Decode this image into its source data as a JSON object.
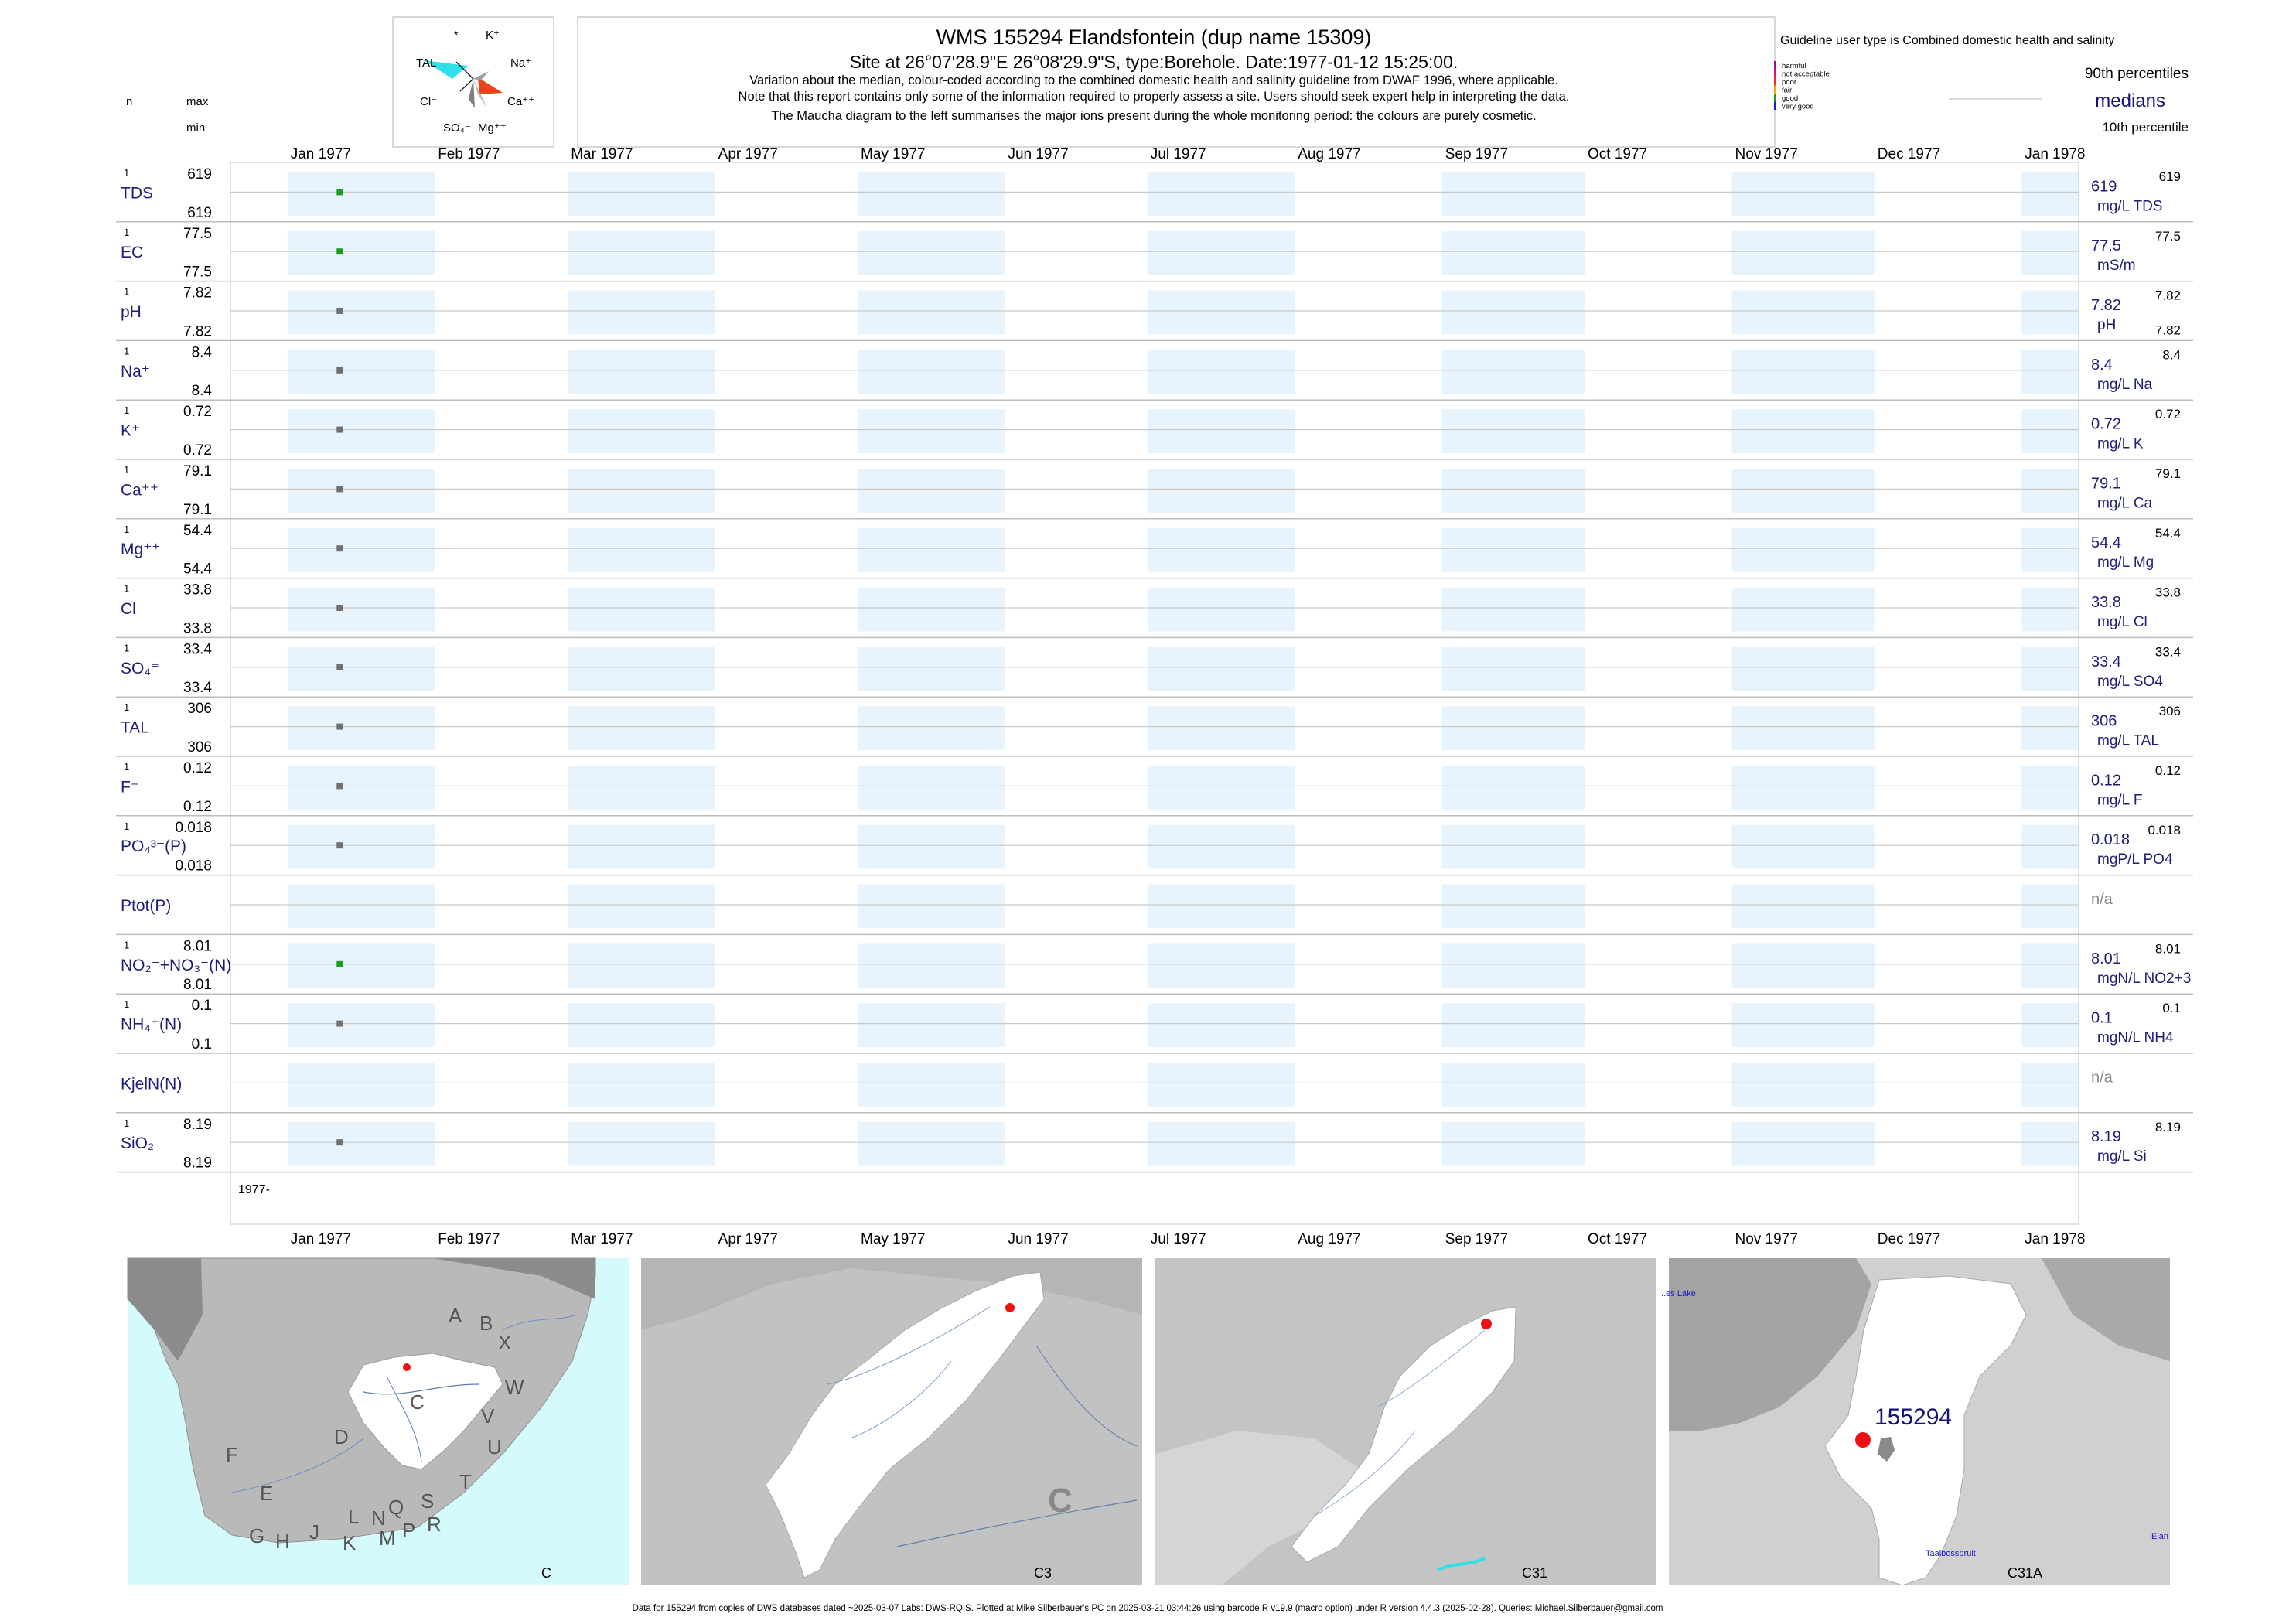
{
  "header": {
    "title": "WMS 155294  Elandsfontein (dup name 15309)",
    "site_line": "Site at 26°07'28.9\"E 26°08'29.9\"S, type:Borehole. Date:1977-01-12 15:25:00.",
    "note1": "Variation about the median,  colour-coded according to the combined domestic health and salinity guideline from DWAF 1996, where applicable.",
    "note2": "Note that this report contains only some of the information required to properly assess a site. Users should seek expert help in interpreting the data.",
    "note3": "The Maucha diagram to the left summarises the major ions present during the whole monitoring period: the colours are purely cosmetic."
  },
  "maucha": {
    "labels": {
      "star": "*",
      "k": "K⁺",
      "tal": "TAL",
      "na": "Na⁺",
      "cl": "Cl⁻",
      "ca": "Ca⁺⁺",
      "so4": "SO₄⁼",
      "mg": "Mg⁺⁺"
    },
    "colors": {
      "tal": "#2fe0e8",
      "ca": "#e8441c",
      "so4": "#7f7f7f",
      "mg": "#b8b8b8"
    }
  },
  "left_header": {
    "n": "n",
    "max": "max",
    "min": "min"
  },
  "legend": {
    "guideline": "Guideline user type is Combined domestic health and salinity",
    "classes": [
      {
        "label": "harmful",
        "color": "#a0108a"
      },
      {
        "label": "not acceptable",
        "color": "#e0108a"
      },
      {
        "label": "poor",
        "color": "#ff2a1a"
      },
      {
        "label": "fair",
        "color": "#ffa500"
      },
      {
        "label": "good",
        "color": "#1aa01a"
      },
      {
        "label": "very good",
        "color": "#1a1ad0"
      }
    ],
    "p90": "90th percentiles",
    "medians": "medians",
    "p10": "10th percentile"
  },
  "chart_data": {
    "type": "scatter",
    "months": [
      "Jan 1977",
      "Feb 1977",
      "Mar 1977",
      "Apr 1977",
      "May 1977",
      "Jun 1977",
      "Jul 1977",
      "Aug 1977",
      "Sep 1977",
      "Oct 1977",
      "Nov 1977",
      "Dec 1977",
      "Jan 1978"
    ],
    "year_label": "1977-",
    "x_range": [
      "1976-12-20",
      "1978-01-13"
    ],
    "sample_date": "1977-01-12",
    "colors": {
      "band": "#e8f4fd",
      "good": "#1aa01a",
      "neutral": "#707070"
    },
    "series": [
      {
        "n": "1",
        "label": "TDS",
        "max": "619",
        "min": "619",
        "median": "619",
        "unit": "mg/L TDS",
        "p90": "619",
        "p10": "",
        "color": "good",
        "value": 619
      },
      {
        "n": "1",
        "label": "EC",
        "max": "77.5",
        "min": "77.5",
        "median": "77.5",
        "unit": "mS/m",
        "p90": "77.5",
        "p10": "",
        "color": "good",
        "value": 77.5
      },
      {
        "n": "1",
        "label": "pH",
        "max": "7.82",
        "min": "7.82",
        "median": "7.82",
        "unit": "pH",
        "p90": "7.82",
        "p10": "7.82",
        "color": "neutral",
        "value": 7.82
      },
      {
        "n": "1",
        "label": "Na⁺",
        "max": "8.4",
        "min": "8.4",
        "median": "8.4",
        "unit": "mg/L Na",
        "p90": "8.4",
        "p10": "",
        "color": "neutral",
        "value": 8.4
      },
      {
        "n": "1",
        "label": "K⁺",
        "max": "0.72",
        "min": "0.72",
        "median": "0.72",
        "unit": "mg/L K",
        "p90": "0.72",
        "p10": "",
        "color": "neutral",
        "value": 0.72
      },
      {
        "n": "1",
        "label": "Ca⁺⁺",
        "max": "79.1",
        "min": "79.1",
        "median": "79.1",
        "unit": "mg/L Ca",
        "p90": "79.1",
        "p10": "",
        "color": "neutral",
        "value": 79.1
      },
      {
        "n": "1",
        "label": "Mg⁺⁺",
        "max": "54.4",
        "min": "54.4",
        "median": "54.4",
        "unit": "mg/L Mg",
        "p90": "54.4",
        "p10": "",
        "color": "neutral",
        "value": 54.4
      },
      {
        "n": "1",
        "label": "Cl⁻",
        "max": "33.8",
        "min": "33.8",
        "median": "33.8",
        "unit": "mg/L Cl",
        "p90": "33.8",
        "p10": "",
        "color": "neutral",
        "value": 33.8
      },
      {
        "n": "1",
        "label": "SO₄⁼",
        "max": "33.4",
        "min": "33.4",
        "median": "33.4",
        "unit": "mg/L SO4",
        "p90": "33.4",
        "p10": "",
        "color": "neutral",
        "value": 33.4
      },
      {
        "n": "1",
        "label": "TAL",
        "max": "306",
        "min": "306",
        "median": "306",
        "unit": "mg/L TAL",
        "p90": "306",
        "p10": "",
        "color": "neutral",
        "value": 306
      },
      {
        "n": "1",
        "label": "F⁻",
        "max": "0.12",
        "min": "0.12",
        "median": "0.12",
        "unit": "mg/L F",
        "p90": "0.12",
        "p10": "",
        "color": "neutral",
        "value": 0.12
      },
      {
        "n": "1",
        "label": "PO₄³⁻(P)",
        "max": "0.018",
        "min": "0.018",
        "median": "0.018",
        "unit": "mgP/L PO4",
        "p90": "0.018",
        "p10": "",
        "color": "neutral",
        "value": 0.018
      },
      {
        "n": "",
        "label": "Ptot(P)",
        "max": "",
        "min": "",
        "median": "n/a",
        "unit": "",
        "p90": "",
        "p10": "",
        "color": "neutral",
        "value": null
      },
      {
        "n": "1",
        "label": "NO₂⁻+NO₃⁻(N)",
        "max": "8.01",
        "min": "8.01",
        "median": "8.01",
        "unit": "mgN/L NO2+3",
        "p90": "8.01",
        "p10": "",
        "color": "good",
        "value": 8.01
      },
      {
        "n": "1",
        "label": "NH₄⁺(N)",
        "max": "0.1",
        "min": "0.1",
        "median": "0.1",
        "unit": "mgN/L NH4",
        "p90": "0.1",
        "p10": "",
        "color": "neutral",
        "value": 0.1
      },
      {
        "n": "",
        "label": "KjelN(N)",
        "max": "",
        "min": "",
        "median": "n/a",
        "unit": "",
        "p90": "",
        "p10": "",
        "color": "neutral",
        "value": null
      },
      {
        "n": "1",
        "label": "SiO₂",
        "max": "8.19",
        "min": "8.19",
        "median": "8.19",
        "unit": "mg/L Si",
        "p90": "8.19",
        "p10": "",
        "color": "neutral",
        "value": 8.19
      }
    ]
  },
  "maps": [
    {
      "label": "C",
      "letters": [
        "A",
        "B",
        "X",
        "W",
        "C",
        "D",
        "V",
        "U",
        "T",
        "F",
        "E",
        "G",
        "H",
        "J",
        "K",
        "L",
        "N",
        "M",
        "Q",
        "P",
        "S",
        "R"
      ]
    },
    {
      "label": "C3",
      "letters": [
        "C"
      ]
    },
    {
      "label": "C31",
      "letters": []
    },
    {
      "label": "C31A",
      "site": "155294",
      "places": [
        "...es Lake",
        "Taaibosspruit",
        "Elan"
      ]
    }
  ],
  "footer": "Data for 155294 from copies of DWS databases dated ~2025-03-07 Labs: DWS-RQIS. Plotted at Mike Silberbauer's PC on 2025-03-21 03:44:26 using barcode.R v19.9 (macro option) under R version 4.4.3 (2025-02-28). Queries: Michael.Silberbauer@gmail.com"
}
